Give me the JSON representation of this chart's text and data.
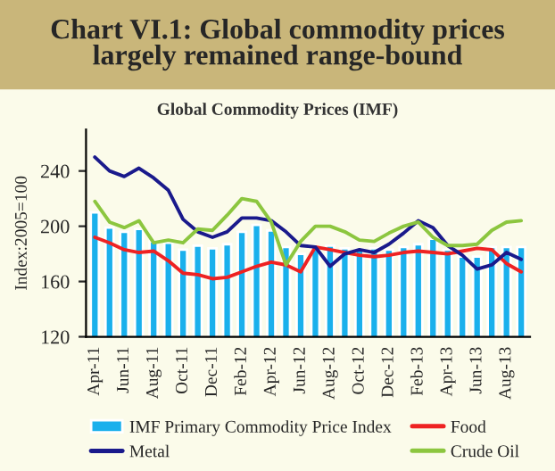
{
  "chart_data": {
    "type": "bar",
    "title": "Chart VI.1: Global commodity prices\nlargely remained range-bound",
    "subtitle": "Global Commodity Prices (IMF)",
    "ylabel": "Index:2005=100",
    "categories": [
      "Apr-11",
      null,
      "Jun-11",
      null,
      "Aug-11",
      null,
      "Oct-11",
      null,
      "Dec-11",
      null,
      "Feb-12",
      null,
      "Apr-12",
      null,
      "Jun-12",
      null,
      "Aug-12",
      null,
      "Oct-12",
      null,
      "Dec-12",
      null,
      "Feb-13",
      null,
      "Apr-13",
      null,
      "Jun-13",
      null,
      "Aug-13",
      null
    ],
    "series": [
      {
        "name": "IMF Primary Commodity Price Index",
        "color": "#1ab0ec",
        "values": [
          210,
          199,
          196,
          198,
          189,
          188,
          183,
          186,
          184,
          187,
          196,
          201,
          197,
          185,
          180,
          185,
          186,
          184,
          183,
          184,
          183,
          185,
          187,
          191,
          183,
          178,
          178,
          185,
          185,
          185
        ]
      },
      {
        "name": "Food",
        "type": "line",
        "color": "#ee2222",
        "values": [
          192,
          188,
          183,
          181,
          182,
          175,
          166,
          165,
          162,
          163,
          167,
          171,
          174,
          172,
          167,
          185,
          183,
          181,
          179,
          178,
          179,
          181,
          182,
          181,
          180,
          182,
          184,
          183,
          173,
          167
        ]
      },
      {
        "name": "Metal",
        "type": "line",
        "color": "#1a1a8c",
        "values": [
          250,
          240,
          236,
          242,
          235,
          226,
          205,
          196,
          192,
          196,
          206,
          206,
          204,
          196,
          186,
          185,
          171,
          180,
          183,
          181,
          187,
          195,
          204,
          199,
          186,
          179,
          169,
          172,
          181,
          176
        ]
      },
      {
        "name": "Crude Oil",
        "type": "line",
        "color": "#8cc63f",
        "values": [
          218,
          203,
          199,
          204,
          188,
          190,
          188,
          198,
          197,
          208,
          220,
          218,
          203,
          172,
          189,
          200,
          200,
          196,
          190,
          189,
          195,
          200,
          203,
          192,
          186,
          186,
          187,
          197,
          203,
          204
        ]
      }
    ],
    "ylim": [
      120,
      270
    ],
    "yticks": [
      120,
      160,
      200,
      240
    ],
    "grid": false,
    "legend": "bottom"
  }
}
